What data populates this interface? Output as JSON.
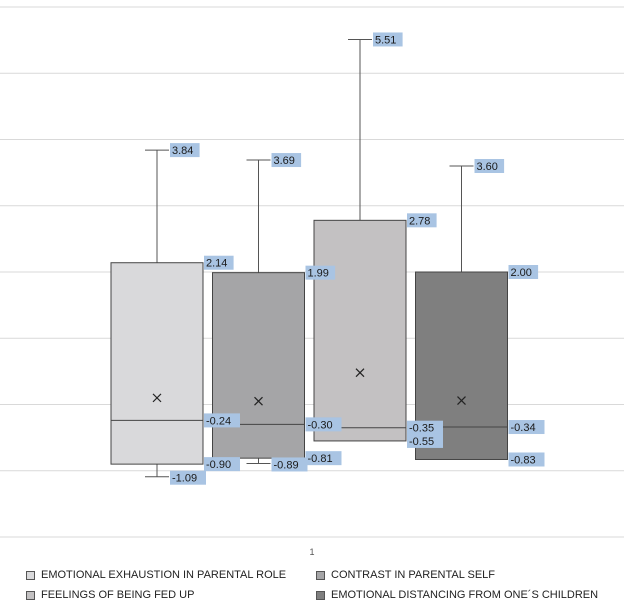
{
  "chart_data": {
    "type": "boxplot",
    "categories": [
      "1"
    ],
    "ylim": [
      -2,
      6
    ],
    "grid": true,
    "legend_position": "bottom",
    "series": [
      {
        "name": "EMOTIONAL EXHAUSTION IN PARENTAL ROLE",
        "color": "#d9d9db",
        "min": -1.09,
        "q1": -0.9,
        "median": -0.24,
        "q3": 2.14,
        "max": 3.84,
        "mean": 0.1,
        "labels": {
          "max": "3.84",
          "q3": "2.14",
          "median": "-0.24",
          "q1": "-0.90",
          "min": "-1.09"
        }
      },
      {
        "name": "CONTRAST IN PARENTAL SELF",
        "color": "#a5a5a7",
        "min": -0.89,
        "q1": -0.81,
        "median": -0.3,
        "q3": 1.99,
        "max": 3.69,
        "mean": 0.05,
        "labels": {
          "max": "3.69",
          "q3": "1.99",
          "median": "-0.30",
          "q1": "-0.81",
          "min": "-0.89"
        }
      },
      {
        "name": "FEELINGS OF BEING FED UP",
        "color": "#c3c1c2",
        "min": -0.55,
        "q1": -0.55,
        "median": -0.35,
        "q3": 2.78,
        "max": 5.51,
        "mean": 0.48,
        "labels": {
          "max": "5.51",
          "q3": "2.78",
          "median": "-0.35",
          "q1": "-0.55"
        }
      },
      {
        "name": "EMOTIONAL DISTANCING FROM ONE´S CHILDREN",
        "color": "#7f7f7f",
        "min": -0.83,
        "q1": -0.83,
        "median": -0.34,
        "q3": 2.0,
        "max": 3.6,
        "mean": 0.06,
        "labels": {
          "max": "3.60",
          "q3": "2.00",
          "median": "-0.34",
          "q1": "-0.83"
        }
      }
    ]
  },
  "legend": [
    {
      "label": "EMOTIONAL EXHAUSTION IN PARENTAL ROLE",
      "color": "#d9d9db"
    },
    {
      "label": "CONTRAST IN PARENTAL SELF",
      "color": "#a5a5a7"
    },
    {
      "label": "FEELINGS OF BEING FED UP",
      "color": "#c3c1c2"
    },
    {
      "label": "EMOTIONAL DISTANCING FROM ONE´S CHILDREN",
      "color": "#7f7f7f"
    }
  ]
}
